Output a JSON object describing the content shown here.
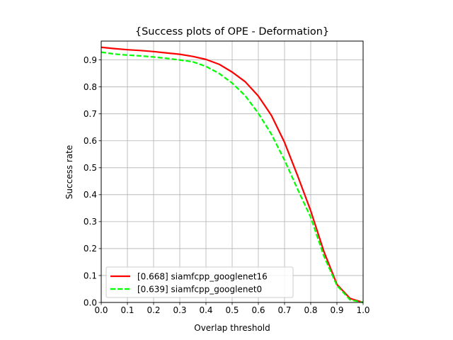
{
  "chart_data": {
    "type": "line",
    "title": "{Success plots of OPE - Deformation}",
    "xlabel": "Overlap threshold",
    "ylabel": "Success rate",
    "xlim": [
      0,
      1
    ],
    "ylim": [
      0,
      0.97
    ],
    "grid": true,
    "legend_position": "lower-left",
    "x_ticks": [
      "0.0",
      "0.1",
      "0.2",
      "0.3",
      "0.4",
      "0.5",
      "0.6",
      "0.7",
      "0.8",
      "0.9",
      "1.0"
    ],
    "y_ticks": [
      "0.0",
      "0.1",
      "0.2",
      "0.3",
      "0.4",
      "0.5",
      "0.6",
      "0.7",
      "0.8",
      "0.9"
    ],
    "x": [
      0.0,
      0.05,
      0.1,
      0.15,
      0.2,
      0.25,
      0.3,
      0.35,
      0.4,
      0.45,
      0.5,
      0.55,
      0.6,
      0.65,
      0.7,
      0.75,
      0.8,
      0.85,
      0.9,
      0.95,
      1.0
    ],
    "series": [
      {
        "name": "[0.668] siamfcpp_googlenet16",
        "color": "#ff0000",
        "style": "solid",
        "values": [
          0.947,
          0.942,
          0.938,
          0.935,
          0.931,
          0.926,
          0.921,
          0.913,
          0.902,
          0.884,
          0.855,
          0.819,
          0.766,
          0.694,
          0.594,
          0.47,
          0.34,
          0.19,
          0.067,
          0.015,
          0.0
        ]
      },
      {
        "name": "[0.639] siamfcpp_googlenet0",
        "color": "#00ff00",
        "style": "dashed",
        "values": [
          0.929,
          0.922,
          0.918,
          0.915,
          0.911,
          0.906,
          0.9,
          0.893,
          0.876,
          0.85,
          0.814,
          0.767,
          0.702,
          0.624,
          0.528,
          0.42,
          0.316,
          0.173,
          0.063,
          0.01,
          0.0
        ]
      }
    ]
  }
}
